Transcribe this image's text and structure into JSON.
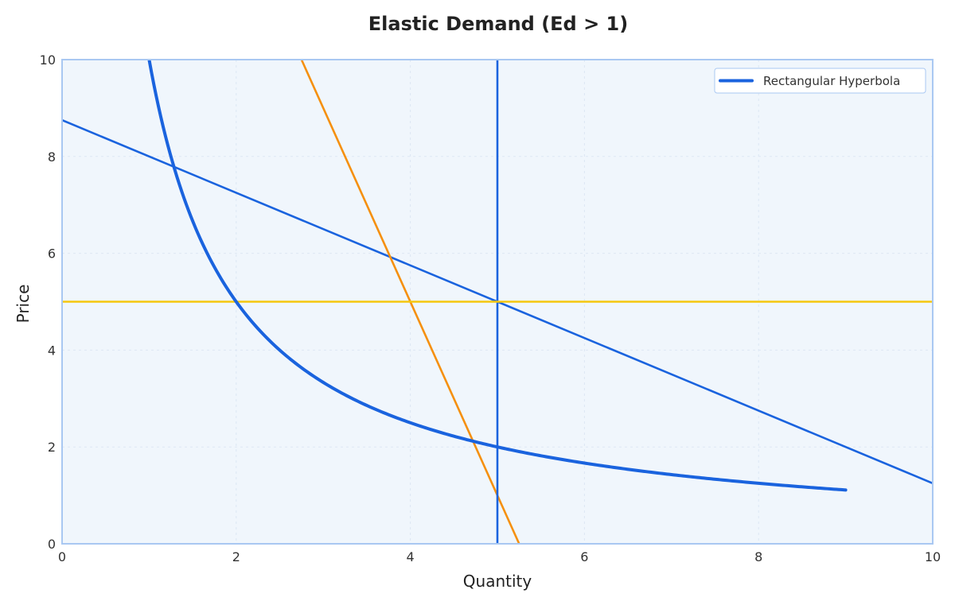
{
  "chart_data": {
    "type": "line",
    "title": "Elastic Demand (Ed > 1)",
    "xlabel": "Quantity",
    "ylabel": "Price",
    "xlim": [
      0,
      10
    ],
    "ylim": [
      0,
      10
    ],
    "xticks": [
      "0",
      "2",
      "4",
      "6",
      "8",
      "10"
    ],
    "yticks": [
      "0",
      "2",
      "4",
      "6",
      "8",
      "10"
    ],
    "grid": true,
    "legend_position": "top-right",
    "colors": {
      "plot_background": "#f0f6fc",
      "frame": "#a9c8f2",
      "grid": "#dde7f3"
    },
    "series": [
      {
        "name": "Rectangular Hyperbola",
        "kind": "hyperbola",
        "constant": 10,
        "x_range": [
          1,
          9
        ],
        "color": "#1a63de",
        "in_legend": true
      },
      {
        "kind": "segment",
        "points": [
          [
            0,
            8.75
          ],
          [
            10,
            1.25
          ]
        ],
        "color": "#1a63de",
        "in_legend": false
      },
      {
        "kind": "segment",
        "points": [
          [
            2.75,
            10
          ],
          [
            5.25,
            0
          ]
        ],
        "color": "#f5900f",
        "in_legend": false
      },
      {
        "kind": "segment",
        "points": [
          [
            5,
            0
          ],
          [
            5,
            10
          ]
        ],
        "color": "#1a63de",
        "in_legend": false
      },
      {
        "kind": "segment",
        "points": [
          [
            0,
            5
          ],
          [
            10,
            5
          ]
        ],
        "color": "#f5c70f",
        "in_legend": false
      }
    ]
  }
}
